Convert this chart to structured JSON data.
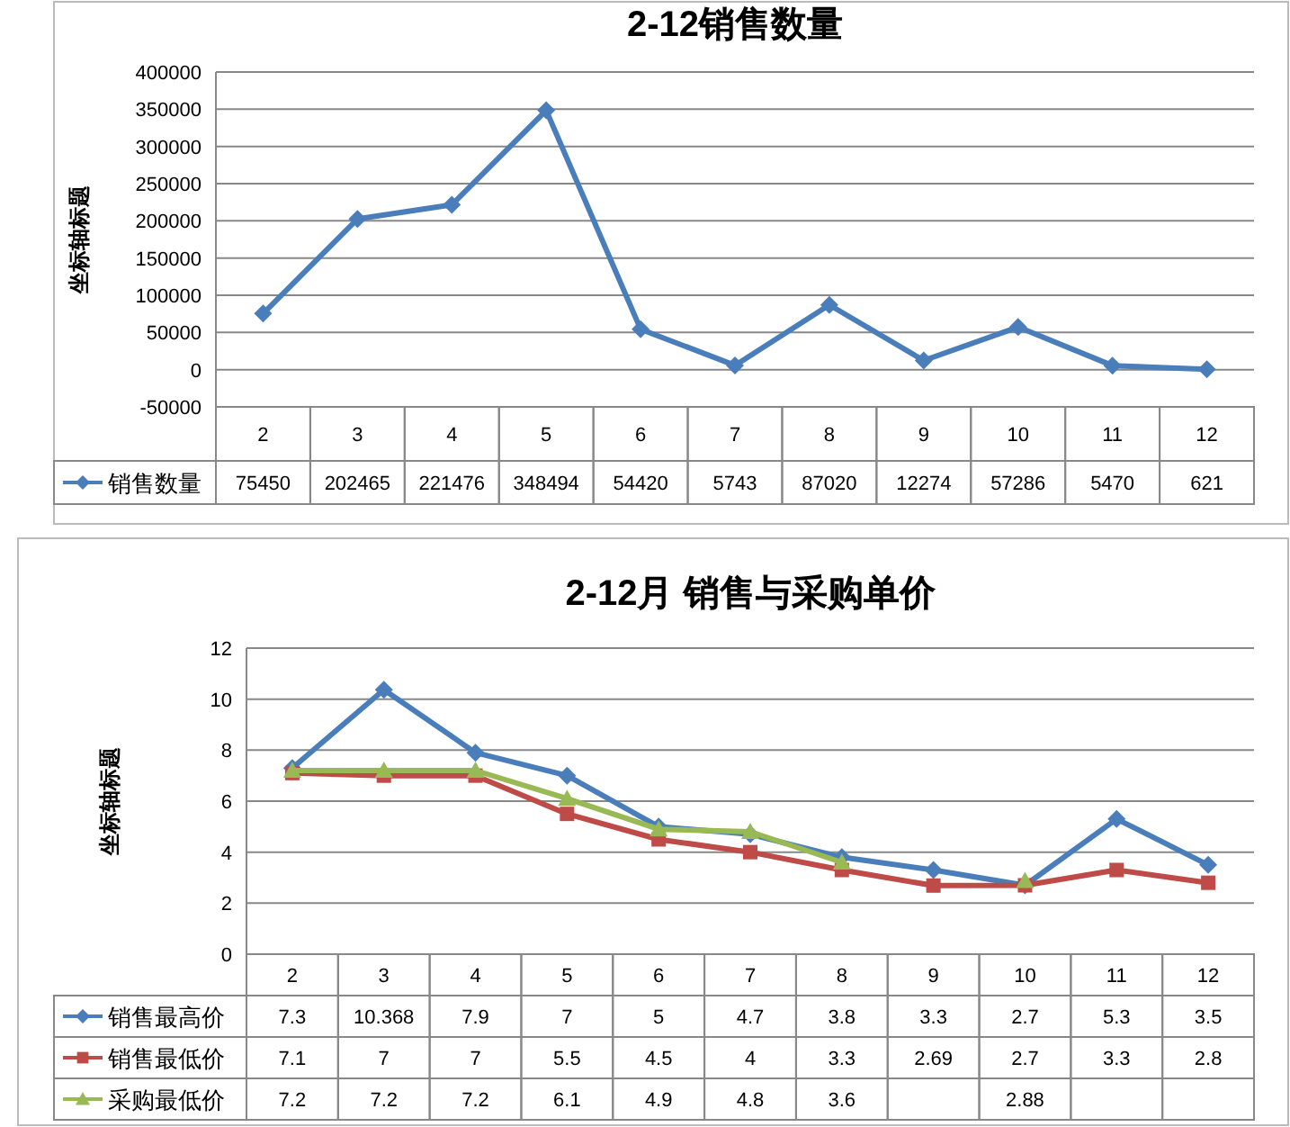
{
  "chart_data": [
    {
      "type": "line",
      "title": "2-12销售数量",
      "ylabel": "坐标轴标题",
      "categories": [
        "2",
        "3",
        "4",
        "5",
        "6",
        "7",
        "8",
        "9",
        "10",
        "11",
        "12"
      ],
      "series": [
        {
          "name": "销售数量",
          "color": "#4a7ebb",
          "marker": "diamond",
          "values": [
            75450,
            202465,
            221476,
            348494,
            54420,
            5743,
            87020,
            12274,
            57286,
            5470,
            621
          ]
        }
      ],
      "ylim": [
        -50000,
        400000
      ],
      "yticks": [
        -50000,
        0,
        50000,
        100000,
        150000,
        200000,
        250000,
        300000,
        350000,
        400000
      ],
      "grid": "y",
      "data_labels": true,
      "legend": "bottom"
    },
    {
      "type": "line",
      "title": "2-12月 销售与采购单价",
      "ylabel": "坐标轴标题",
      "categories": [
        "2",
        "3",
        "4",
        "5",
        "6",
        "7",
        "8",
        "9",
        "10",
        "11",
        "12"
      ],
      "series": [
        {
          "name": "销售最高价",
          "color": "#4a7ebb",
          "marker": "diamond",
          "values": [
            7.3,
            10.368,
            7.9,
            7,
            5,
            4.7,
            3.8,
            3.3,
            2.7,
            5.3,
            3.5
          ]
        },
        {
          "name": "销售最低价",
          "color": "#be4b48",
          "marker": "square",
          "values": [
            7.1,
            7,
            7,
            5.5,
            4.5,
            4,
            3.3,
            2.69,
            2.7,
            3.3,
            2.8
          ]
        },
        {
          "name": "采购最低价",
          "color": "#98b954",
          "marker": "triangle",
          "values": [
            7.2,
            7.2,
            7.2,
            6.1,
            4.9,
            4.8,
            3.6,
            null,
            2.88,
            null,
            null
          ]
        }
      ],
      "ylim": [
        0,
        12
      ],
      "yticks": [
        0,
        2,
        4,
        6,
        8,
        10,
        12
      ],
      "grid": "y",
      "data_labels": true,
      "legend": "bottom"
    }
  ]
}
